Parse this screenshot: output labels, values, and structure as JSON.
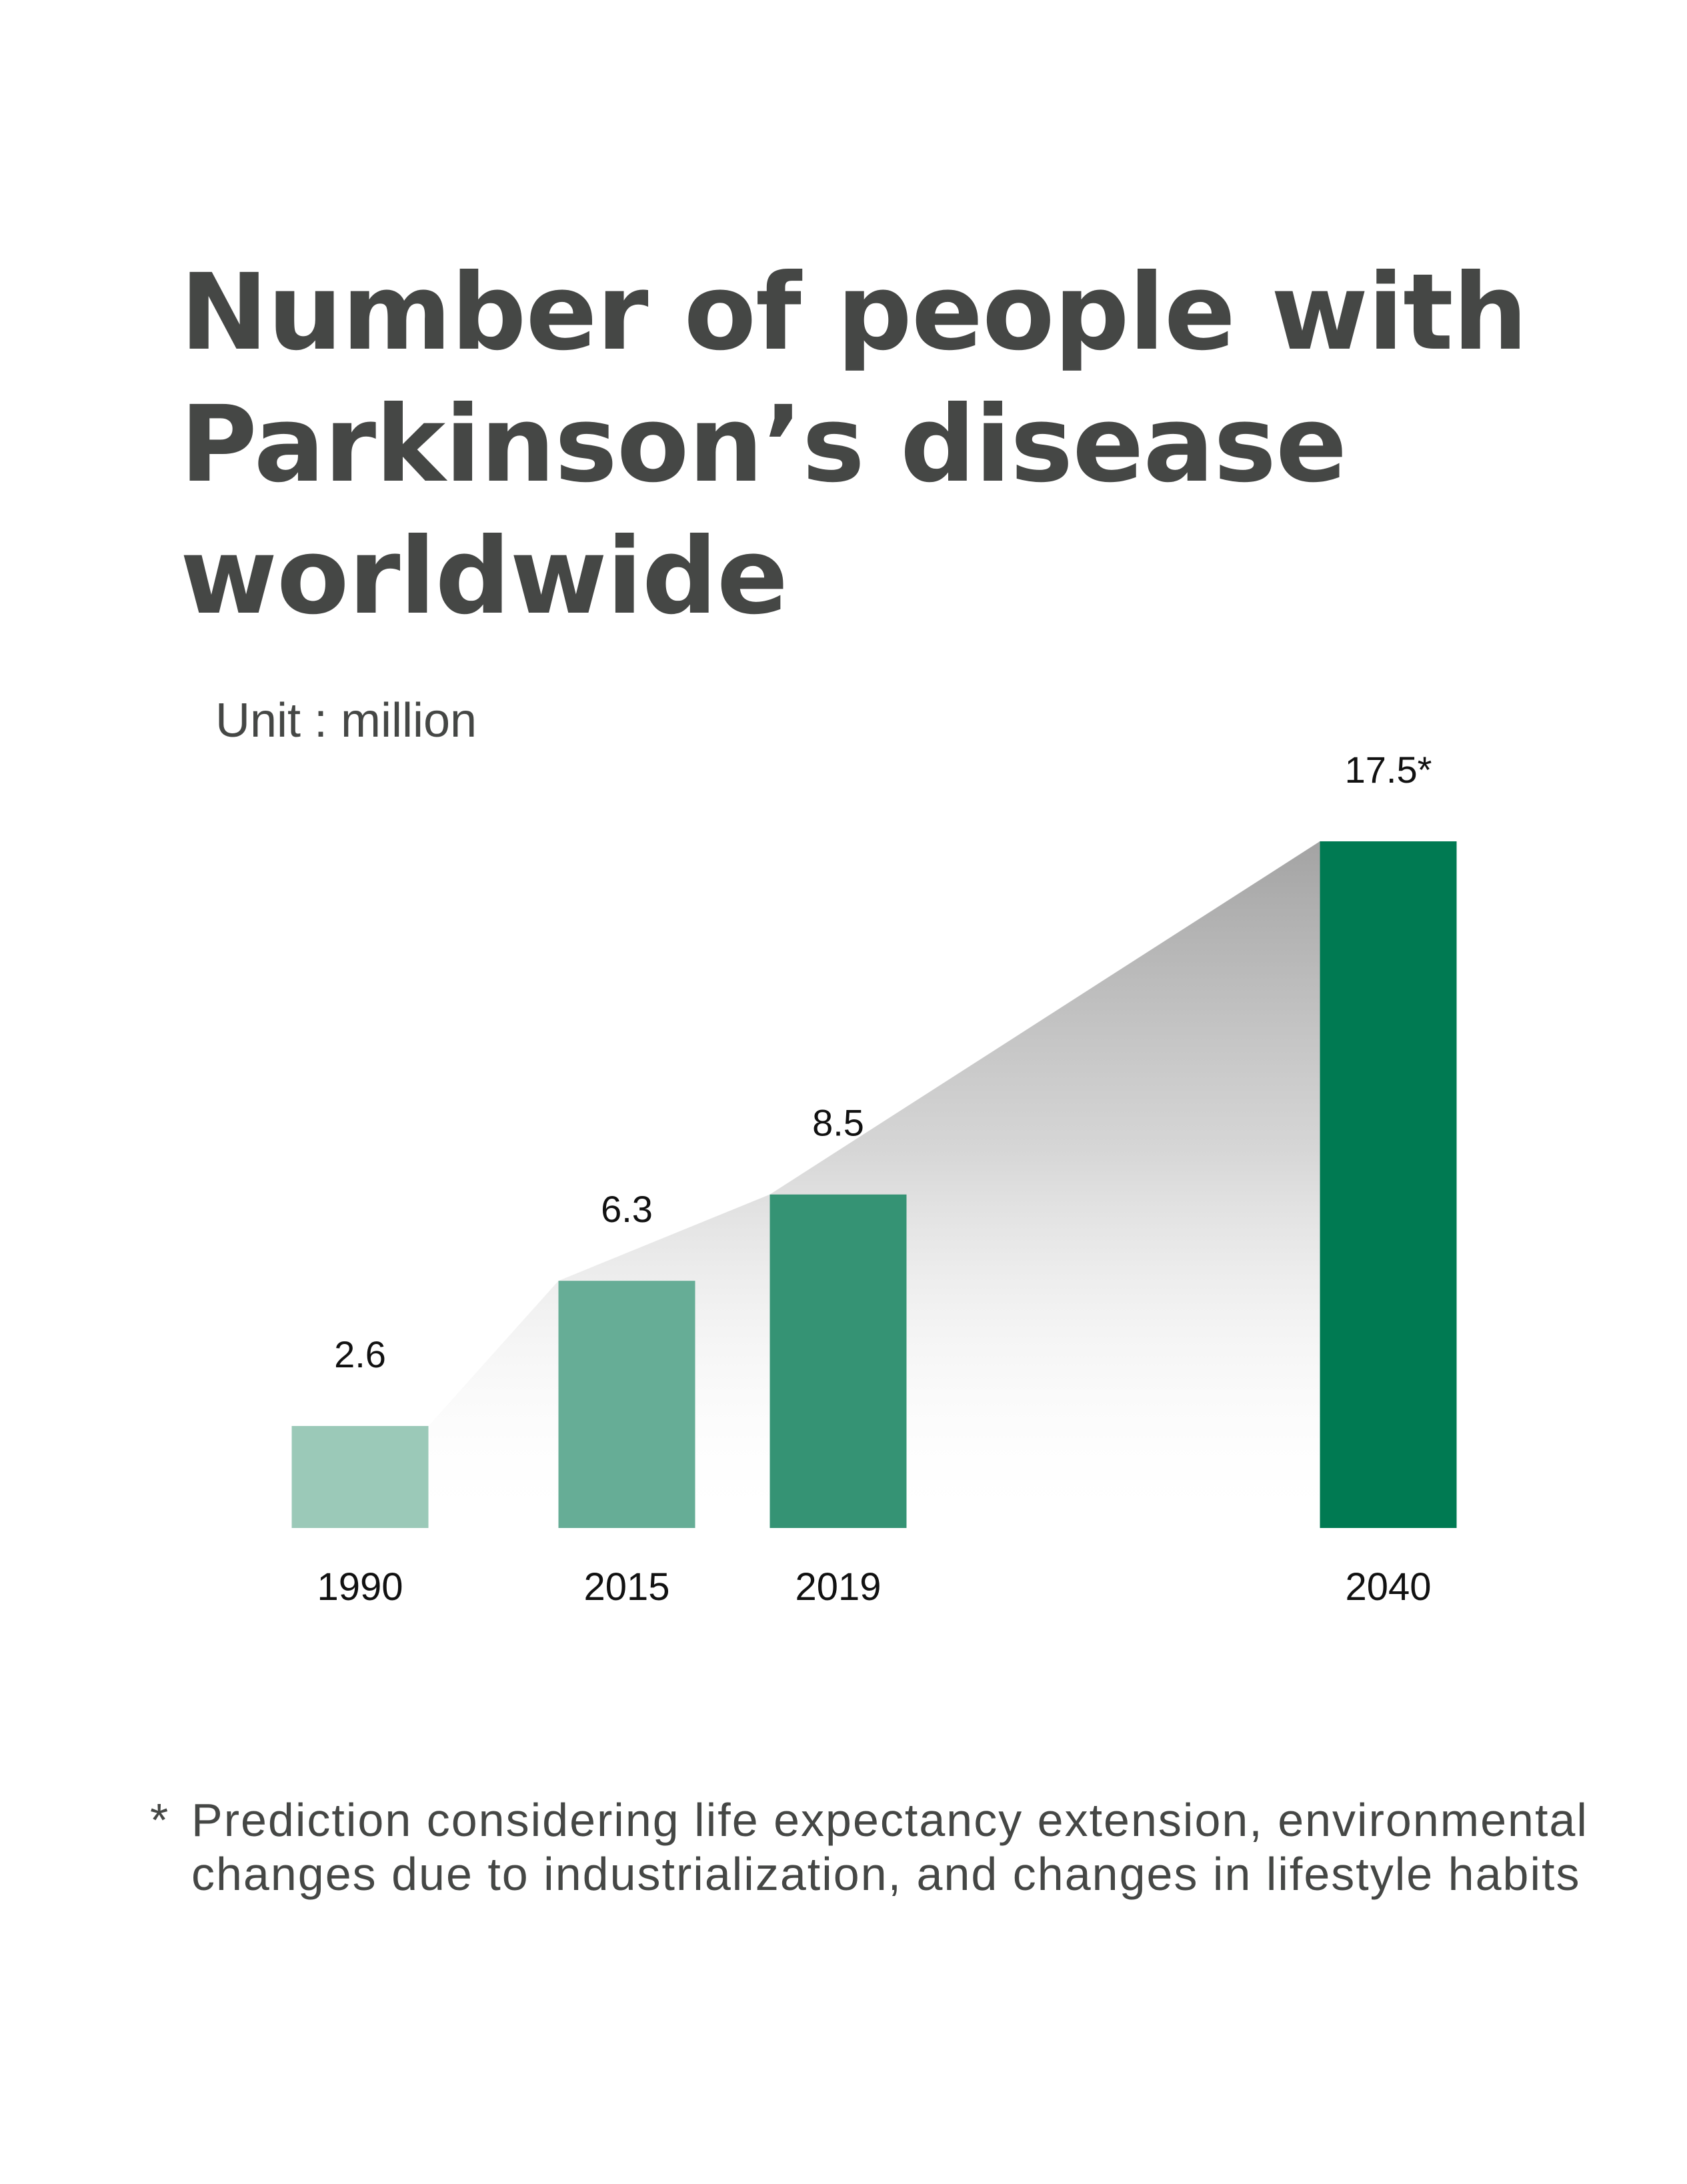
{
  "title": "Number of people with Parkinson’s disease worldwide",
  "unit_label": "Unit : million",
  "footnote": {
    "marker": "*",
    "text": "Prediction considering life expectancy extension, environmental changes due to industrialization, and changes in lifestyle habits"
  },
  "colors": {
    "title": "#454745",
    "bars": [
      "#9bc9b8",
      "#66ad96",
      "#359374",
      "#007a52"
    ],
    "shadow": "#a3a3a3"
  },
  "chart_data": {
    "type": "bar",
    "categories": [
      "1990",
      "2015",
      "2019",
      "2040"
    ],
    "values": [
      2.6,
      6.3,
      8.5,
      17.5
    ],
    "value_labels": [
      "2.6",
      "6.3",
      "8.5",
      "17.5*"
    ],
    "title": "Number of people with Parkinson’s disease worldwide",
    "xlabel": "",
    "ylabel": "Unit : million",
    "ylim": [
      0,
      17.5
    ],
    "grid": false,
    "legend": "none"
  }
}
